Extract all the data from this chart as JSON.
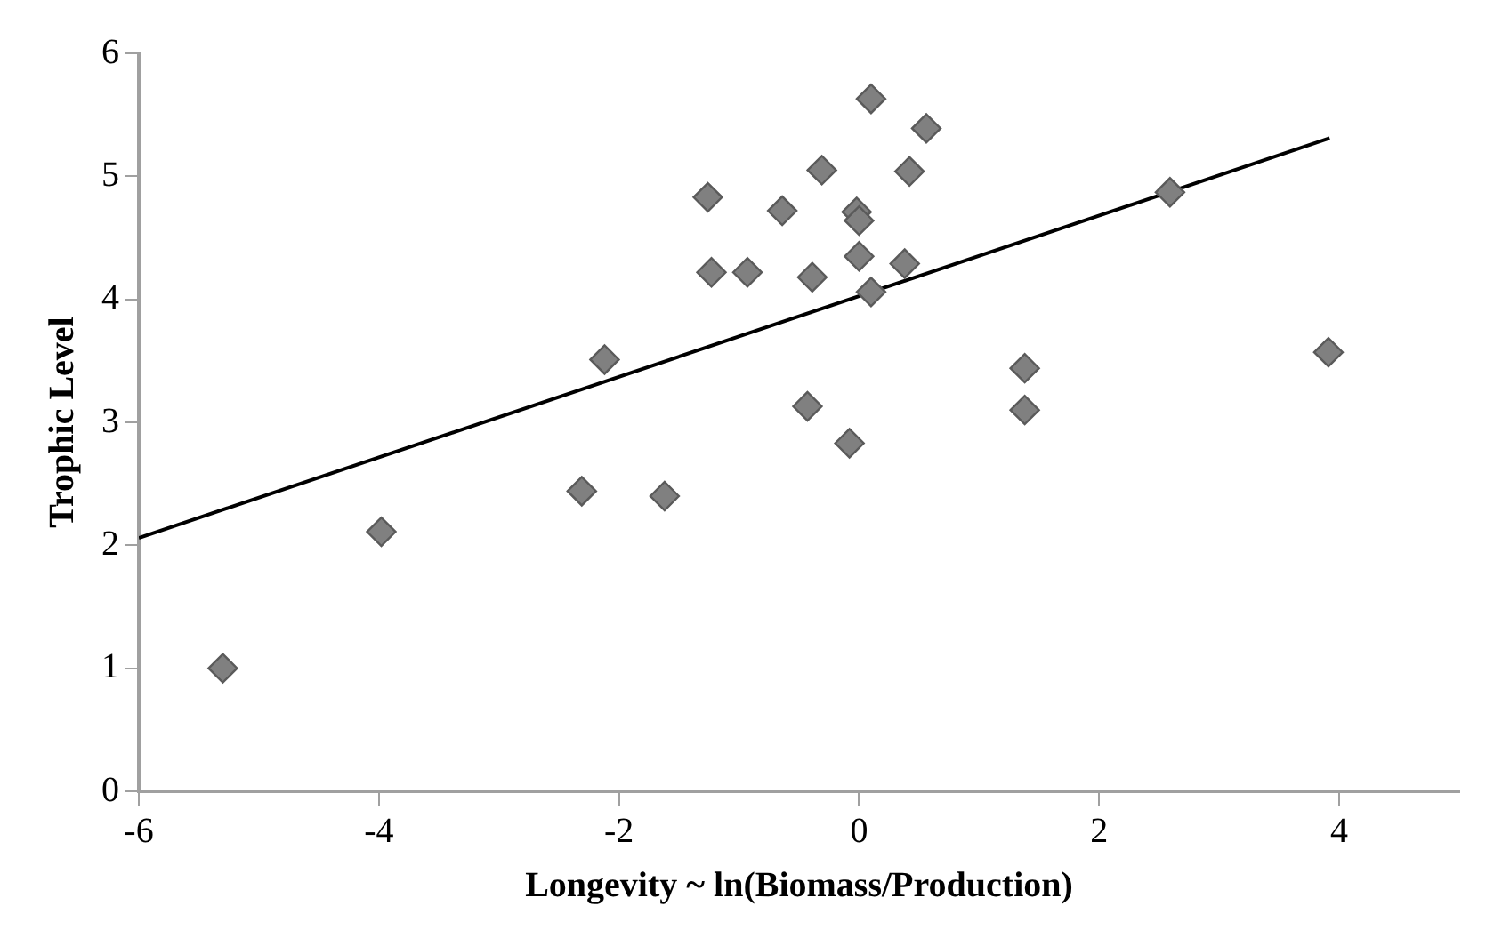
{
  "chart_data": {
    "type": "scatter",
    "xlabel": "Longevity ~ ln(Biomass/Production)",
    "ylabel": "Trophic Level",
    "xlim": [
      -6,
      5
    ],
    "xticks": [
      -6,
      -4,
      -2,
      0,
      2,
      4
    ],
    "ylim": [
      0,
      6
    ],
    "yticks": [
      0,
      1,
      2,
      3,
      4,
      5,
      6
    ],
    "grid": false,
    "legend": false,
    "marker": "diamond",
    "series": [
      {
        "color": "#808080",
        "x": [
          -5.3,
          -3.98,
          -2.31,
          -2.12,
          -1.62,
          -1.26,
          -1.23,
          -0.93,
          -0.64,
          -0.31,
          -0.39,
          -0.43,
          -0.08,
          0.1,
          -0.02,
          0.0,
          0.0,
          0.1,
          0.38,
          0.42,
          0.56,
          1.38,
          1.38,
          2.59,
          3.91
        ],
        "values": [
          1.0,
          2.11,
          2.44,
          3.51,
          2.4,
          4.83,
          4.22,
          4.22,
          4.72,
          5.05,
          4.18,
          3.13,
          2.83,
          5.63,
          4.71,
          4.64,
          4.35,
          4.06,
          4.29,
          5.04,
          5.39,
          3.44,
          3.1,
          4.87,
          3.57
        ]
      },
      {
        "type": "line",
        "color": "#000000",
        "marker": "none",
        "x": [
          -6,
          3.92
        ],
        "values": [
          2.06,
          5.31
        ]
      }
    ]
  }
}
